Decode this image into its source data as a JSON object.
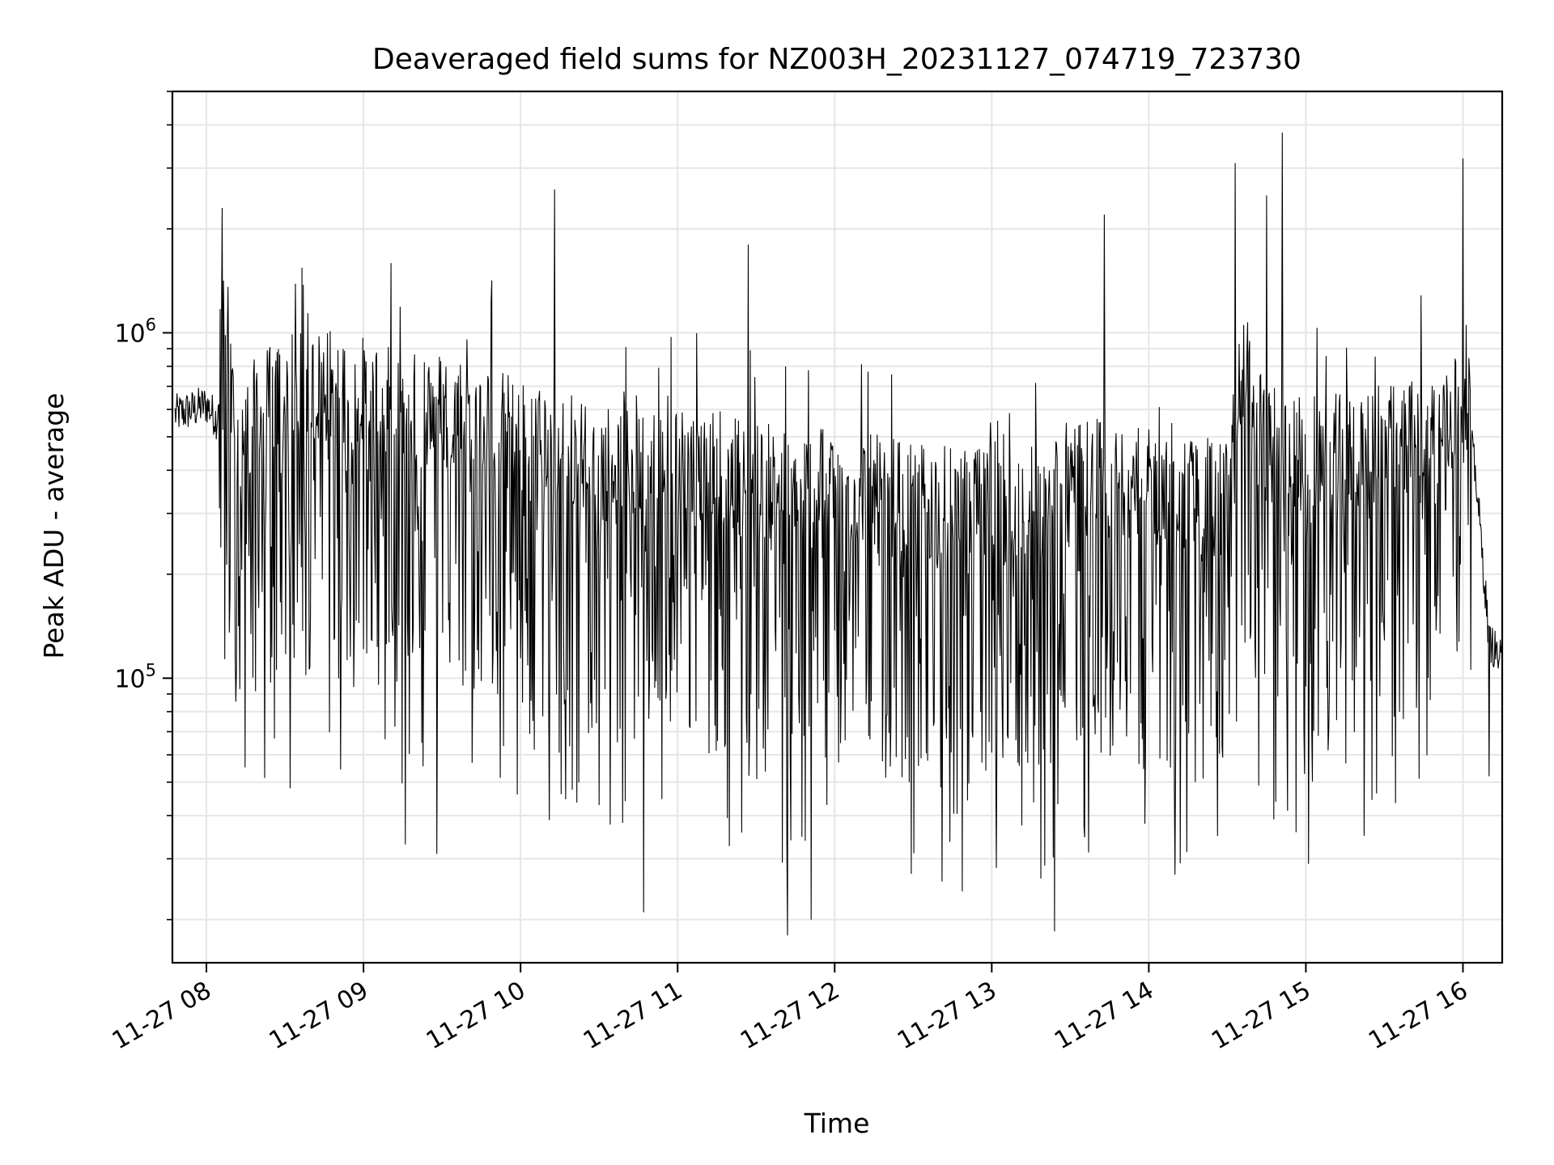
{
  "chart_data": {
    "type": "line",
    "title": "Deaveraged field sums for NZ003H_20231127_074719_723730",
    "xlabel": "Time",
    "ylabel": "Peak ADU - average",
    "xlim": [
      "2023-11-27 07:47",
      "2023-11-27 16:15"
    ],
    "ylim": [
      15000,
      5000000
    ],
    "yscale": "log",
    "grid": true,
    "line_color": "#000000",
    "x_ticks": [
      "11-27 08",
      "11-27 09",
      "11-27 10",
      "11-27 11",
      "11-27 12",
      "11-27 13",
      "11-27 14",
      "11-27 15",
      "11-27 16"
    ],
    "y_ticks": [
      {
        "base": "10",
        "exp": "5",
        "value": 100000
      },
      {
        "base": "10",
        "exp": "6",
        "value": 1000000
      }
    ],
    "series": [
      {
        "x": [
          "11-27 07:48",
          "11-27 07:55",
          "11-27 08:00",
          "11-27 08:04",
          "11-27 08:06",
          "11-27 08:10",
          "11-27 08:15",
          "11-27 08:20",
          "11-27 08:30",
          "11-27 08:45",
          "11-27 09:00",
          "11-27 09:15",
          "11-27 09:30",
          "11-27 09:45",
          "11-27 10:00",
          "11-27 10:15",
          "11-27 10:30",
          "11-27 10:45",
          "11-27 11:00",
          "11-27 11:15",
          "11-27 11:30",
          "11-27 11:45",
          "11-27 12:00",
          "11-27 12:15",
          "11-27 12:30",
          "11-27 12:45",
          "11-27 13:00",
          "11-27 13:15",
          "11-27 13:30",
          "11-27 13:45",
          "11-27 14:00",
          "11-27 14:15",
          "11-27 14:30",
          "11-27 14:36",
          "11-27 14:45",
          "11-27 15:00",
          "11-27 15:15",
          "11-27 15:30",
          "11-27 15:45",
          "11-27 15:55",
          "11-27 16:00",
          "11-27 16:05",
          "11-27 16:10",
          "11-27 16:15"
        ],
        "y": [
          580000,
          600000,
          620000,
          560000,
          900000,
          500000,
          420000,
          520000,
          560000,
          600000,
          560000,
          500000,
          520000,
          480000,
          420000,
          400000,
          360000,
          350000,
          360000,
          340000,
          320000,
          300000,
          300000,
          290000,
          280000,
          270000,
          260000,
          270000,
          330000,
          320000,
          300000,
          290000,
          280000,
          700000,
          400000,
          380000,
          380000,
          400000,
          430000,
          450000,
          700000,
          380000,
          130000,
          110000
        ],
        "spikes": [
          {
            "x": "11-27 08:06",
            "y": 2300000
          },
          {
            "x": "11-27 10:13",
            "y": 2600000
          },
          {
            "x": "11-27 11:27",
            "y": 1800000
          },
          {
            "x": "11-27 13:43",
            "y": 2200000
          },
          {
            "x": "11-27 14:33",
            "y": 3100000
          },
          {
            "x": "11-27 14:45",
            "y": 2500000
          },
          {
            "x": "11-27 14:51",
            "y": 3800000
          },
          {
            "x": "11-27 16:00",
            "y": 3200000
          }
        ],
        "dips": [
          {
            "x": "11-27 08:32",
            "y": 48000
          },
          {
            "x": "11-27 09:16",
            "y": 33000
          },
          {
            "x": "11-27 09:28",
            "y": 31000
          },
          {
            "x": "11-27 10:47",
            "y": 21000
          },
          {
            "x": "11-27 11:42",
            "y": 18000
          },
          {
            "x": "11-27 11:51",
            "y": 20000
          },
          {
            "x": "11-27 13:24",
            "y": 18500
          },
          {
            "x": "11-27 14:10",
            "y": 27000
          },
          {
            "x": "11-27 15:01",
            "y": 29000
          },
          {
            "x": "11-27 16:10",
            "y": 52000
          }
        ]
      }
    ]
  }
}
